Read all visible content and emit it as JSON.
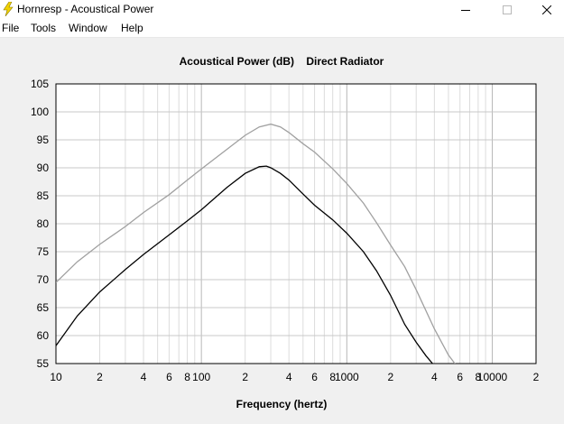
{
  "window": {
    "title": "Hornresp - Acoustical Power",
    "icon": "lightning-icon",
    "controls": [
      "minimize-icon",
      "maximize-icon",
      "close-icon"
    ]
  },
  "menu": {
    "items": [
      "File",
      "Tools",
      "Window",
      "Help"
    ]
  },
  "chart_data": {
    "type": "line",
    "title": "Acoustical Power (dB)    Direct Radiator",
    "xlabel": "Frequency (hertz)",
    "ylabel": "",
    "x_scale": "log",
    "xlim": [
      10,
      20000
    ],
    "ylim": [
      55,
      105
    ],
    "y_ticks": [
      55,
      60,
      65,
      70,
      75,
      80,
      85,
      90,
      95,
      100,
      105
    ],
    "x_ticks": [
      {
        "value": 10,
        "label": "10"
      },
      {
        "value": 20,
        "label": "2"
      },
      {
        "value": 40,
        "label": "4"
      },
      {
        "value": 60,
        "label": "6"
      },
      {
        "value": 80,
        "label": "8"
      },
      {
        "value": 100,
        "label": "100"
      },
      {
        "value": 200,
        "label": "2"
      },
      {
        "value": 400,
        "label": "4"
      },
      {
        "value": 600,
        "label": "6"
      },
      {
        "value": 800,
        "label": "8"
      },
      {
        "value": 1000,
        "label": "1000"
      },
      {
        "value": 2000,
        "label": "2"
      },
      {
        "value": 4000,
        "label": "4"
      },
      {
        "value": 6000,
        "label": "6"
      },
      {
        "value": 8000,
        "label": "8"
      },
      {
        "value": 10000,
        "label": "10000"
      },
      {
        "value": 20000,
        "label": "2"
      }
    ],
    "grid": true,
    "legend": "none",
    "series": [
      {
        "color": "#000000",
        "x": [
          10,
          14,
          20,
          30,
          40,
          60,
          80,
          100,
          150,
          200,
          250,
          280,
          300,
          350,
          400,
          500,
          600,
          800,
          1000,
          1300,
          1600,
          2000,
          2500,
          3000,
          3500,
          4000,
          4500
        ],
        "y": [
          58.2,
          63.5,
          67.8,
          71.8,
          74.5,
          78.0,
          80.5,
          82.5,
          86.5,
          89.0,
          90.2,
          90.3,
          90.0,
          89.0,
          87.8,
          85.3,
          83.3,
          80.7,
          78.3,
          75.0,
          71.6,
          67.2,
          62.0,
          58.8,
          56.4,
          54.6,
          53.5
        ]
      },
      {
        "color": "#a0a0a0",
        "x": [
          10,
          14,
          20,
          30,
          40,
          60,
          80,
          100,
          150,
          200,
          250,
          300,
          350,
          400,
          500,
          600,
          800,
          1000,
          1300,
          1600,
          2000,
          2500,
          3000,
          4000,
          5000,
          6000
        ],
        "y": [
          69.5,
          73.2,
          76.3,
          79.5,
          82.0,
          85.2,
          87.8,
          89.8,
          93.3,
          95.8,
          97.3,
          97.8,
          97.3,
          96.3,
          94.3,
          92.8,
          89.8,
          87.2,
          83.7,
          80.2,
          76.2,
          72.3,
          68.2,
          61.2,
          56.5,
          53.8
        ]
      }
    ]
  }
}
